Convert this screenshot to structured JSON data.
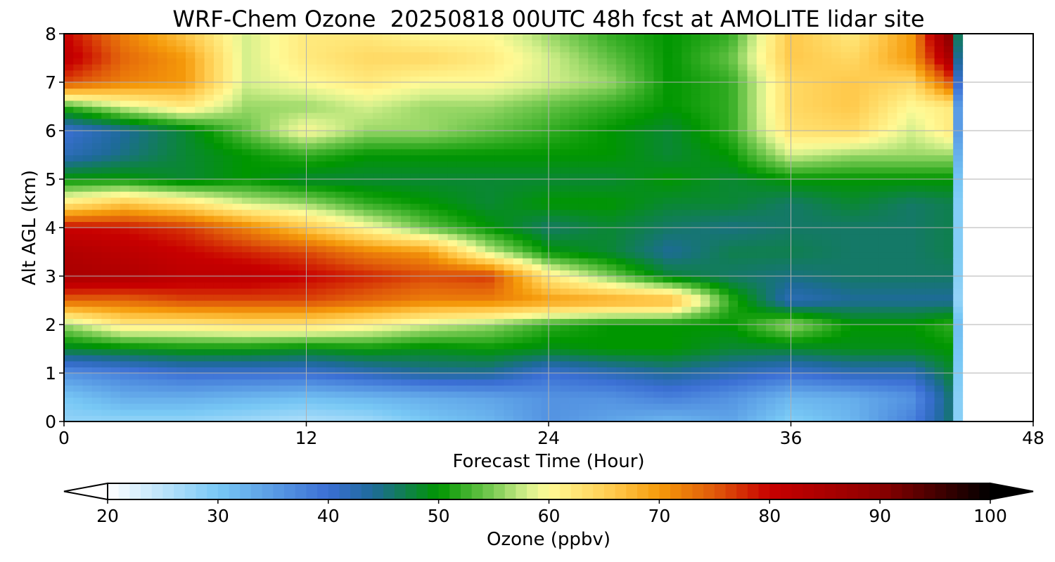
{
  "chart_data": {
    "type": "heatmap",
    "title": "WRF-Chem Ozone  20250818 00UTC 48h fcst at AMOLITE lidar site",
    "xlabel": "Forecast Time (Hour)",
    "ylabel": "Alt AGL (km)",
    "xlim": [
      0,
      48
    ],
    "ylim": [
      0,
      8
    ],
    "xticks": [
      "0",
      "12",
      "24",
      "36",
      "48"
    ],
    "yticks": [
      "0",
      "1",
      "2",
      "3",
      "4",
      "5",
      "6",
      "7",
      "8"
    ],
    "grid": true,
    "data_end_hour": 44.5,
    "x": [
      0,
      3,
      6,
      9,
      12,
      15,
      18,
      21,
      24,
      27,
      30,
      33,
      36,
      39,
      42,
      44
    ],
    "y": [
      0,
      0.5,
      1.0,
      1.5,
      2.0,
      2.5,
      3.0,
      3.5,
      4.0,
      4.5,
      5.0,
      5.5,
      6.0,
      6.5,
      7.0,
      7.5,
      8.0
    ],
    "z": [
      [
        28,
        28,
        28,
        27,
        26,
        27,
        30,
        32,
        36,
        34,
        32,
        34,
        29,
        32,
        38,
        46
      ],
      [
        30,
        33,
        33,
        32,
        31,
        32,
        33,
        34,
        36,
        36,
        38,
        36,
        32,
        33,
        36,
        46
      ],
      [
        36,
        38,
        40,
        40,
        40,
        42,
        44,
        44,
        40,
        42,
        44,
        42,
        40,
        42,
        42,
        48
      ],
      [
        48,
        49,
        50,
        50,
        49,
        50,
        49,
        50,
        49,
        50,
        50,
        48,
        48,
        49,
        49,
        50
      ],
      [
        56,
        62,
        62,
        63,
        63,
        61,
        58,
        56,
        52,
        50,
        50,
        50,
        56,
        50,
        50,
        52
      ],
      [
        74,
        74,
        76,
        76,
        76,
        74,
        72,
        72,
        70,
        69,
        68,
        52,
        42,
        44,
        44,
        44
      ],
      [
        85,
        84,
        82,
        82,
        80,
        78,
        76,
        77,
        62,
        55,
        48,
        46,
        45,
        46,
        46,
        46
      ],
      [
        84,
        82,
        80,
        78,
        76,
        72,
        70,
        58,
        50,
        48,
        44,
        47,
        47,
        46,
        46,
        47
      ],
      [
        80,
        79,
        77,
        72,
        66,
        60,
        54,
        50,
        46,
        48,
        46,
        45,
        46,
        46,
        46,
        47
      ],
      [
        62,
        66,
        63,
        58,
        56,
        52,
        50,
        48,
        50,
        50,
        48,
        48,
        46,
        48,
        46,
        47
      ],
      [
        50,
        50,
        48,
        50,
        48,
        48,
        48,
        48,
        48,
        48,
        50,
        48,
        50,
        50,
        50,
        50
      ],
      [
        42,
        45,
        48,
        50,
        52,
        50,
        50,
        50,
        50,
        50,
        48,
        50,
        58,
        56,
        56,
        56
      ],
      [
        40,
        44,
        48,
        54,
        60,
        56,
        56,
        54,
        52,
        50,
        48,
        52,
        63,
        64,
        58,
        62
      ],
      [
        52,
        58,
        62,
        56,
        56,
        58,
        56,
        56,
        54,
        52,
        50,
        52,
        64,
        66,
        60,
        62
      ],
      [
        76,
        72,
        70,
        58,
        60,
        62,
        60,
        60,
        58,
        56,
        50,
        52,
        64,
        66,
        64,
        76
      ],
      [
        82,
        74,
        70,
        58,
        62,
        64,
        64,
        62,
        58,
        54,
        50,
        54,
        66,
        64,
        70,
        86
      ],
      [
        80,
        72,
        66,
        58,
        62,
        62,
        60,
        60,
        56,
        52,
        50,
        52,
        66,
        62,
        70,
        92
      ]
    ]
  },
  "colorbar": {
    "label": "Ozone  (ppbv)",
    "min": 20,
    "max": 100,
    "ticks": [
      "20",
      "30",
      "40",
      "50",
      "60",
      "70",
      "80",
      "90",
      "100"
    ],
    "extend": "both",
    "stops": [
      [
        20,
        "#ffffff"
      ],
      [
        30,
        "#78c8f5"
      ],
      [
        40,
        "#3b6fd4"
      ],
      [
        44,
        "#1e6a9a"
      ],
      [
        50,
        "#009600"
      ],
      [
        55,
        "#7ccc55"
      ],
      [
        58,
        "#d5f08c"
      ],
      [
        60,
        "#fffa96"
      ],
      [
        66,
        "#ffc84a"
      ],
      [
        70,
        "#f59a0a"
      ],
      [
        75,
        "#e05a0a"
      ],
      [
        80,
        "#c80000"
      ],
      [
        90,
        "#8c0000"
      ],
      [
        100,
        "#000000"
      ]
    ]
  }
}
